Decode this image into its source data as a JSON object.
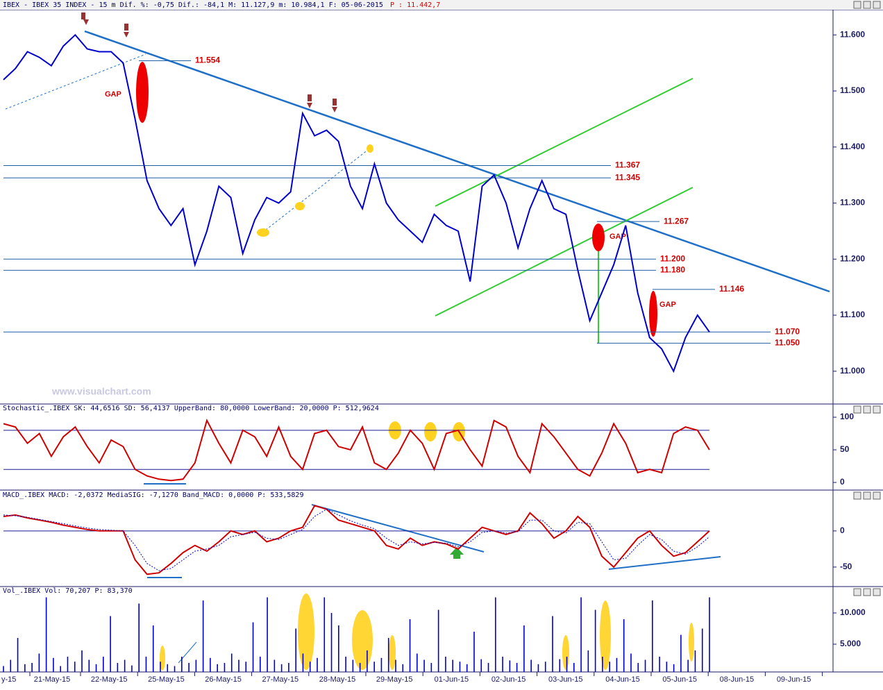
{
  "chart_data": [
    {
      "type": "line",
      "title": "IBEX - IBEX 35 INDEX -  15 m Dif. %: -0,75 Dif.: -84,1 M: 11.127,9 m: 10.984,1 F: 05-06-2015",
      "price_label": "P : 11.442,7",
      "watermark": "www.visualchart.com",
      "color": "#0000cc",
      "values": [
        11520,
        11540,
        11570,
        11560,
        11545,
        11580,
        11600,
        11575,
        11570,
        11570,
        11550,
        11450,
        11340,
        11290,
        11260,
        11290,
        11190,
        11250,
        11330,
        11310,
        11210,
        11270,
        11310,
        11300,
        11320,
        11460,
        11420,
        11430,
        11410,
        11330,
        11290,
        11370,
        11300,
        11270,
        11250,
        11230,
        11280,
        11260,
        11250,
        11160,
        11330,
        11350,
        11300,
        11220,
        11290,
        11340,
        11290,
        11280,
        11180,
        11090,
        11140,
        11190,
        11260,
        11140,
        11060,
        11040,
        11000,
        11060,
        11100,
        11070
      ],
      "ylim": [
        10944,
        11640
      ],
      "yticks": [
        {
          "value": 11000,
          "label": "11.000"
        },
        {
          "value": 11100,
          "label": "11.100"
        },
        {
          "value": 11200,
          "label": "11.200"
        },
        {
          "value": 11300,
          "label": "11.300"
        },
        {
          "value": 11400,
          "label": "11.400"
        },
        {
          "value": 11500,
          "label": "11.500"
        },
        {
          "value": 11600,
          "label": "11.600"
        }
      ],
      "levels": [
        {
          "value": 11554,
          "label": "11.554"
        },
        {
          "value": 11367,
          "label": "11.367"
        },
        {
          "value": 11345,
          "label": "11.345"
        },
        {
          "value": 11267,
          "label": "11.267"
        },
        {
          "value": 11200,
          "label": "11.200"
        },
        {
          "value": 11180,
          "label": "11.180"
        },
        {
          "value": 11146,
          "label": "11.146"
        },
        {
          "value": 11070,
          "label": "11.070"
        },
        {
          "value": 11050,
          "label": "11.050"
        }
      ],
      "annotations": [
        "GAP",
        "GAP",
        "GAP"
      ]
    },
    {
      "type": "line",
      "title": "Stochastic_.IBEX SK: 44,6516 SD: 56,4137 UpperBand: 80,0000 LowerBand: 20,0000 P: 512,9624",
      "color": "#d00000",
      "values": [
        90,
        85,
        60,
        75,
        40,
        70,
        85,
        55,
        30,
        65,
        55,
        20,
        10,
        5,
        3,
        5,
        30,
        95,
        60,
        30,
        80,
        70,
        40,
        85,
        40,
        20,
        75,
        80,
        55,
        50,
        85,
        30,
        20,
        45,
        80,
        60,
        20,
        75,
        80,
        50,
        25,
        95,
        85,
        40,
        15,
        90,
        70,
        45,
        20,
        10,
        45,
        90,
        60,
        15,
        20,
        15,
        75,
        85,
        80,
        50
      ],
      "ylim": [
        -10.6,
        109.6
      ],
      "yticks": [
        0,
        50,
        100
      ],
      "bands": [
        80,
        20
      ]
    },
    {
      "type": "line",
      "title": "MACD_.IBEX MACD: -2,0372 MediaSIG: -7,1270 Band_MACD: 0,0000 P: 533,5829",
      "series": [
        {
          "color": "#d00000",
          "values": [
            20,
            22,
            18,
            15,
            12,
            8,
            5,
            2,
            0,
            0,
            0,
            -40,
            -60,
            -58,
            -45,
            -30,
            -20,
            -28,
            -15,
            0,
            -5,
            0,
            -15,
            -10,
            0,
            5,
            35,
            30,
            15,
            10,
            5,
            0,
            -20,
            -25,
            -10,
            -20,
            -15,
            -18,
            -25,
            -10,
            5,
            0,
            -5,
            0,
            25,
            10,
            -10,
            0,
            20,
            5,
            -35,
            -50,
            -30,
            -10,
            0,
            -20,
            -35,
            -30,
            -15,
            0
          ]
        },
        {
          "color": "#0000cc",
          "values": [
            22,
            21,
            19,
            16,
            13,
            10,
            7,
            4,
            2,
            1,
            0,
            -20,
            -45,
            -55,
            -52,
            -40,
            -28,
            -25,
            -20,
            -8,
            -5,
            -2,
            -10,
            -12,
            -5,
            2,
            20,
            30,
            22,
            14,
            8,
            3,
            -10,
            -20,
            -15,
            -18,
            -16,
            -17,
            -22,
            -15,
            -2,
            0,
            -3,
            -1,
            15,
            15,
            0,
            -3,
            12,
            10,
            -15,
            -40,
            -38,
            -20,
            -5,
            -12,
            -28,
            -32,
            -22,
            -8
          ]
        }
      ],
      "ylim": [
        -77,
        45
      ],
      "yticks": [
        -50,
        0
      ],
      "bands": [
        0
      ]
    },
    {
      "type": "bar",
      "title": "Vol_.IBEX Vol: 70,207 P: 83,370",
      "color": "#0000cc",
      "values": [
        1500,
        2500,
        6000,
        1800,
        2000,
        3500,
        12500,
        2800,
        1500,
        3000,
        2200,
        4000,
        2500,
        1800,
        3000,
        9500,
        2000,
        2500,
        1600,
        11500,
        3000,
        8000,
        2200,
        1800,
        1500,
        3000,
        2000,
        2500,
        12000,
        2800,
        1800,
        2000,
        3500,
        2500,
        2200,
        8500,
        3000,
        12500,
        2500,
        1800,
        2000,
        7500,
        3500,
        2200,
        2800,
        12500,
        10000,
        8000,
        3000,
        2500,
        2000,
        4000,
        2200,
        2800,
        6000,
        2500,
        1800,
        9000,
        3500,
        2500,
        2000,
        10500,
        3000,
        2500,
        2200,
        1800,
        7000,
        2600,
        2000,
        12500,
        3000,
        2400,
        2000,
        8000,
        2500,
        1800,
        2200,
        9500,
        2600,
        3000,
        2000,
        12500,
        4000,
        10500,
        3000,
        2200,
        2800,
        9000,
        3500,
        2000,
        2500,
        12000,
        3000,
        2200,
        1800,
        6500,
        2500,
        4000,
        7500,
        12500
      ],
      "ylim": [
        556,
        13111
      ],
      "yticks": [
        {
          "value": 5000,
          "label": "5.000"
        },
        {
          "value": 10000,
          "label": "10.000"
        }
      ],
      "xticks": [
        "y-15",
        "21-May-15",
        "22-May-15",
        "25-May-15",
        "26-May-15",
        "27-May-15",
        "28-May-15",
        "29-May-15",
        "01-Jun-15",
        "02-Jun-15",
        "03-Jun-15",
        "04-Jun-15",
        "05-Jun-15",
        "08-Jun-15",
        "09-Jun-15"
      ]
    }
  ]
}
